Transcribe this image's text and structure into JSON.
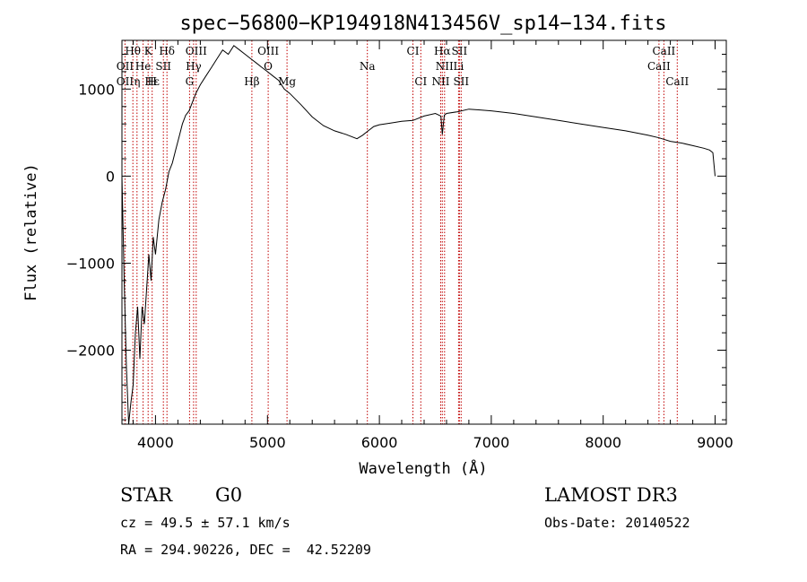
{
  "chart_data": {
    "type": "line",
    "title": "spec−56800−KP194918N413456V_sp14−134.fits",
    "xlabel": "Wavelength (Å)",
    "ylabel": "Flux (relative)",
    "xlim": [
      3700,
      9100
    ],
    "ylim": [
      -2850,
      1560
    ],
    "xticks": [
      4000,
      5000,
      6000,
      7000,
      8000,
      9000
    ],
    "yticks": [
      -2000,
      -1000,
      0,
      1000
    ],
    "grid": false,
    "line_color": "#000000",
    "marker_color": "#c00000",
    "spectrum": {
      "name": "flux",
      "x": [
        3700,
        3720,
        3740,
        3760,
        3780,
        3800,
        3820,
        3840,
        3860,
        3880,
        3900,
        3920,
        3940,
        3960,
        3980,
        4000,
        4030,
        4060,
        4090,
        4120,
        4150,
        4180,
        4210,
        4240,
        4270,
        4300,
        4330,
        4360,
        4400,
        4450,
        4500,
        4550,
        4600,
        4650,
        4700,
        4750,
        4800,
        4850,
        4900,
        4950,
        5000,
        5050,
        5100,
        5150,
        5200,
        5300,
        5400,
        5500,
        5600,
        5700,
        5800,
        5850,
        5900,
        5950,
        6000,
        6100,
        6200,
        6300,
        6400,
        6500,
        6550,
        6563,
        6580,
        6600,
        6700,
        6800,
        6900,
        7000,
        7200,
        7400,
        7600,
        7800,
        8000,
        8200,
        8400,
        8500,
        8600,
        8700,
        8800,
        8900,
        8950,
        8980,
        9000
      ],
      "y": [
        0,
        -1200,
        -2200,
        -2850,
        -2600,
        -2400,
        -1800,
        -1500,
        -2100,
        -1500,
        -1700,
        -1300,
        -900,
        -1200,
        -700,
        -900,
        -500,
        -300,
        -150,
        50,
        150,
        300,
        450,
        600,
        700,
        750,
        850,
        950,
        1050,
        1150,
        1250,
        1350,
        1450,
        1400,
        1500,
        1450,
        1400,
        1350,
        1300,
        1250,
        1200,
        1150,
        1100,
        1000,
        950,
        820,
        680,
        580,
        520,
        480,
        430,
        470,
        520,
        570,
        590,
        610,
        630,
        640,
        690,
        720,
        690,
        480,
        700,
        720,
        740,
        770,
        760,
        750,
        720,
        680,
        640,
        600,
        560,
        520,
        470,
        440,
        400,
        380,
        350,
        320,
        300,
        270,
        0
      ]
    },
    "lines_upper": [
      {
        "label": "Hθ",
        "x": 3798
      },
      {
        "label": "K",
        "x": 3934
      },
      {
        "label": "Hδ",
        "x": 4102
      },
      {
        "label": "OIII",
        "x": 4363
      },
      {
        "label": "OIII",
        "x": 5007
      },
      {
        "label": "CI",
        "x": 6300
      },
      {
        "label": "Hα",
        "x": 6563
      },
      {
        "label": "SII",
        "x": 6716
      },
      {
        "label": "CaII",
        "x": 8542
      }
    ],
    "lines_middle": [
      {
        "label": "OII",
        "x": 3727
      },
      {
        "label": "He",
        "x": 3889
      },
      {
        "label": "SII",
        "x": 4070
      },
      {
        "label": "Hγ",
        "x": 4340
      },
      {
        "label": "O",
        "x": 5007
      },
      {
        "label": "Na",
        "x": 5893
      },
      {
        "label": "NII",
        "x": 6583
      },
      {
        "label": "Li",
        "x": 6708
      },
      {
        "label": "CaII",
        "x": 8498
      }
    ],
    "lines_lower": [
      {
        "label": "OII",
        "x": 3727
      },
      {
        "label": "Hε",
        "x": 3970
      },
      {
        "label": "η",
        "x": 3835
      },
      {
        "label": "H",
        "x": 3970
      },
      {
        "label": "G",
        "x": 4304
      },
      {
        "label": "Hβ",
        "x": 4861
      },
      {
        "label": "Mg",
        "x": 5175
      },
      {
        "label": "CI",
        "x": 6370
      },
      {
        "label": "NII",
        "x": 6548
      },
      {
        "label": "SII",
        "x": 6731
      },
      {
        "label": "CaII",
        "x": 8662
      }
    ]
  },
  "info": {
    "object_class": "STAR",
    "subclass": "G0",
    "survey": "LAMOST DR3",
    "redshift": "cz = 49.5 ± 57.1 km/s",
    "obs_date": "Obs-Date: 20140522",
    "coords": "RA = 294.90226, DEC =  42.52209"
  }
}
